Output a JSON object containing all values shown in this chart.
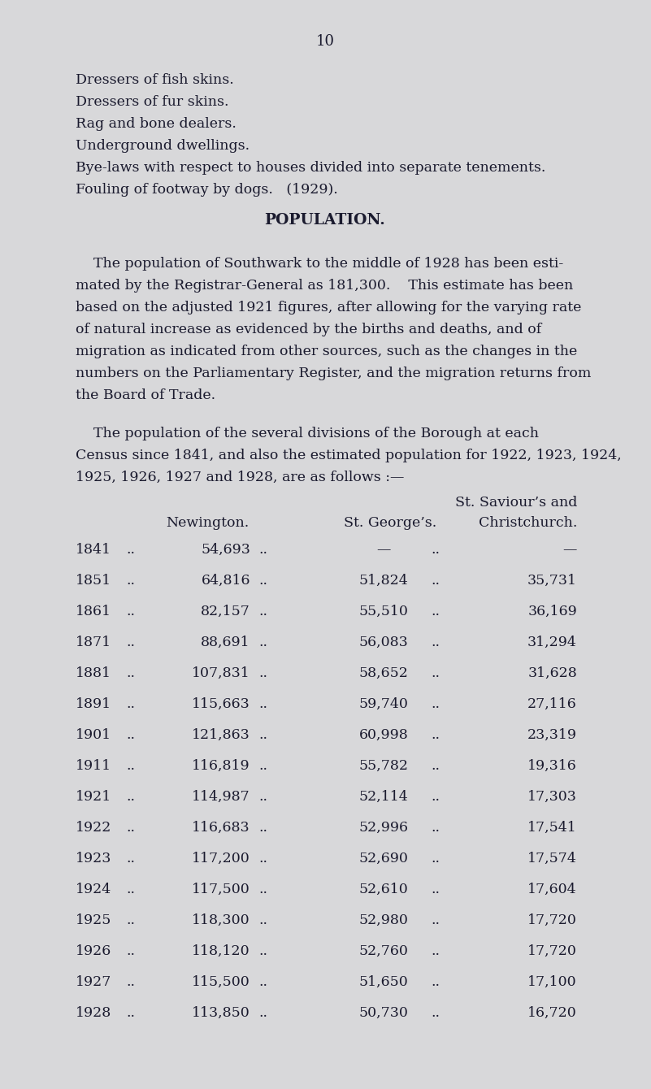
{
  "background_color": "#d8d8da",
  "page_number": "10",
  "list_items": [
    "Dressers of fish skins.",
    "Dressers of fur skins.",
    "Rag and bone dealers.",
    "Underground dwellings.",
    "Bye-laws with respect to houses divided into separate tenements.",
    "Fouling of footway by dogs.   (1929)."
  ],
  "section_title": "POPULATION.",
  "p1_lines": [
    "    The population of Southwark to the middle of 1928 has been esti-",
    "mated by the Registrar-General as 181,300.    This estimate has been",
    "based on the adjusted 1921 figures, after allowing for the varying rate",
    "of natural increase as evidenced by the births and deaths, and of",
    "migration as indicated from other sources, such as the changes in the",
    "numbers on the Parliamentary Register, and the migration returns from",
    "the Board of Trade."
  ],
  "p2_lines": [
    "    The population of the several divisions of the Borough at each",
    "Census since 1841, and also the estimated population for 1922, 1923, 1924,",
    "1925, 1926, 1927 and 1928, are as follows :—"
  ],
  "col_header1": "Newington.",
  "col_header2": "St. George’s.",
  "col_header3a": "St. Saviour’s and",
  "col_header3b": "Christchurch.",
  "table_data": [
    [
      "1841",
      "54,693",
      "—",
      "—"
    ],
    [
      "1851",
      "64,816",
      "51,824",
      "35,731"
    ],
    [
      "1861",
      "82,157",
      "55,510",
      "36,169"
    ],
    [
      "1871",
      "88,691",
      "56,083",
      "31,294"
    ],
    [
      "1881",
      "107,831",
      "58,652",
      "31,628"
    ],
    [
      "1891",
      "115,663",
      "59,740",
      "27,116"
    ],
    [
      "1901",
      "121,863",
      "60,998",
      "23,319"
    ],
    [
      "1911",
      "116,819",
      "55,782",
      "19,316"
    ],
    [
      "1921",
      "114,987",
      "52,114",
      "17,303"
    ],
    [
      "1922",
      "116,683",
      "52,996",
      "17,541"
    ],
    [
      "1923",
      "117,200",
      "52,690",
      "17,574"
    ],
    [
      "1924",
      "117,500",
      "52,610",
      "17,604"
    ],
    [
      "1925",
      "118,300",
      "52,980",
      "17,720"
    ],
    [
      "1926",
      "118,120",
      "52,760",
      "17,720"
    ],
    [
      "1927",
      "115,500",
      "51,650",
      "17,100"
    ],
    [
      "1928",
      "113,850",
      "50,730",
      "16,720"
    ]
  ],
  "text_color": "#1a1a2e",
  "font_size_body": 12.5,
  "font_size_title": 13.5,
  "font_size_pagenum": 13.0
}
